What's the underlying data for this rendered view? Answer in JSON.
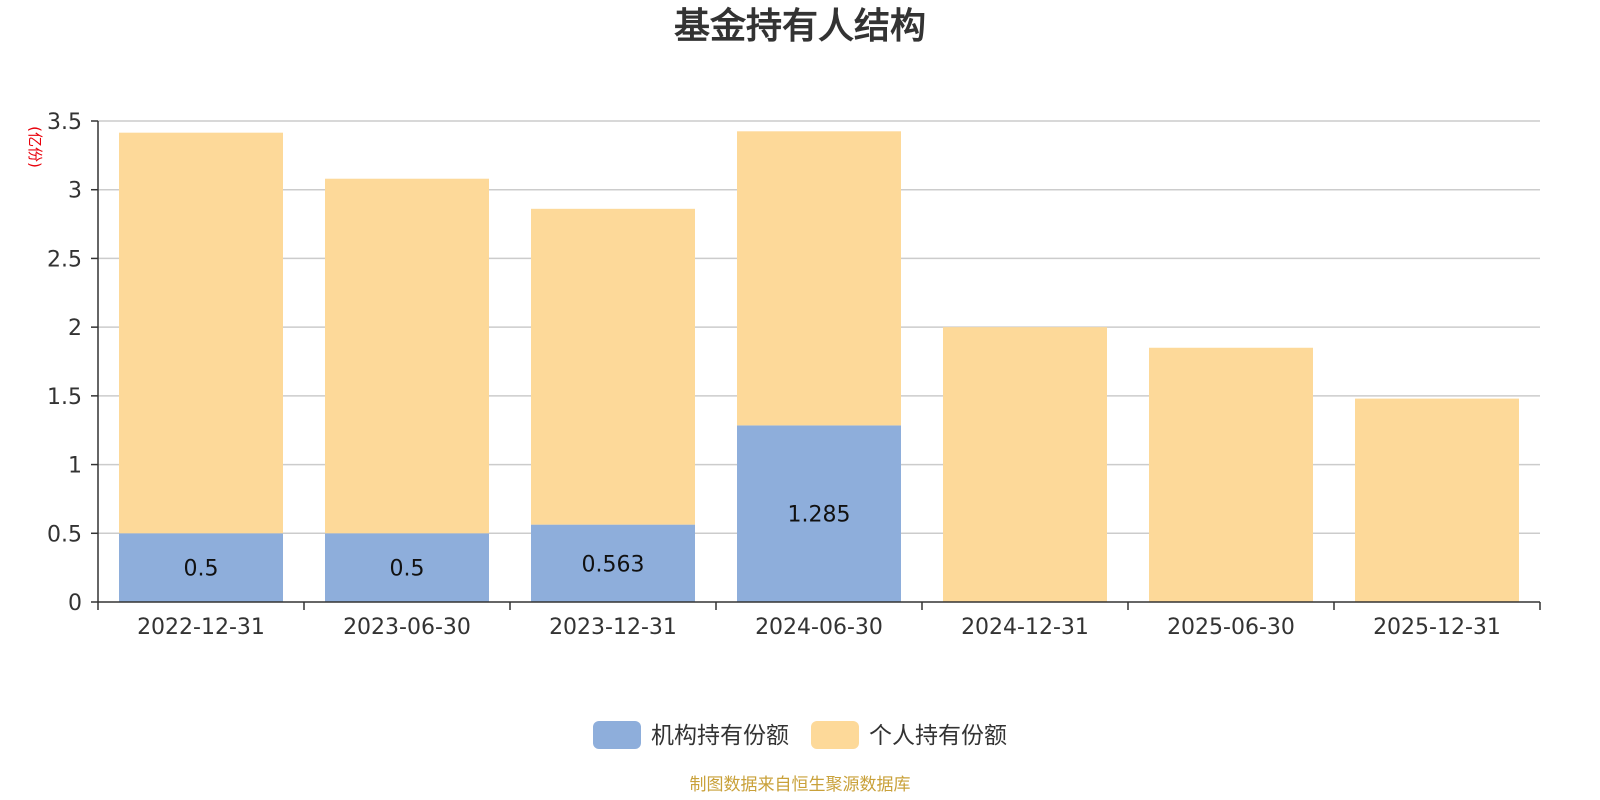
{
  "chart_data": {
    "type": "bar",
    "stacked": true,
    "title": "基金持有人结构",
    "y_unit_label": "(亿份)",
    "categories": [
      "2022-12-31",
      "2023-06-30",
      "2023-12-31",
      "2024-06-30",
      "2024-12-31",
      "2025-06-30",
      "2025-12-31"
    ],
    "ylim": [
      0,
      3.5
    ],
    "yticks": [
      0,
      0.5,
      1,
      1.5,
      2,
      2.5,
      3,
      3.5
    ],
    "grid": true,
    "legend_position": "bottom-center",
    "series": [
      {
        "name": "机构持有份额",
        "color": "#8eaedb",
        "values": [
          0.5,
          0.5,
          0.563,
          1.285,
          0,
          0,
          0
        ],
        "labels": [
          "0.5",
          "0.5",
          "0.563",
          "1.285",
          "",
          "",
          ""
        ]
      },
      {
        "name": "个人持有份额",
        "color": "#fdd999",
        "values": [
          2.915,
          2.58,
          2.298,
          2.14,
          2.0,
          1.85,
          1.48
        ]
      }
    ],
    "source": "制图数据来自恒生聚源数据库"
  },
  "colors": {
    "unit_label": "#e8000b",
    "source_text": "#c9a13a",
    "grid": "#cccccc",
    "axis": "#333333"
  }
}
